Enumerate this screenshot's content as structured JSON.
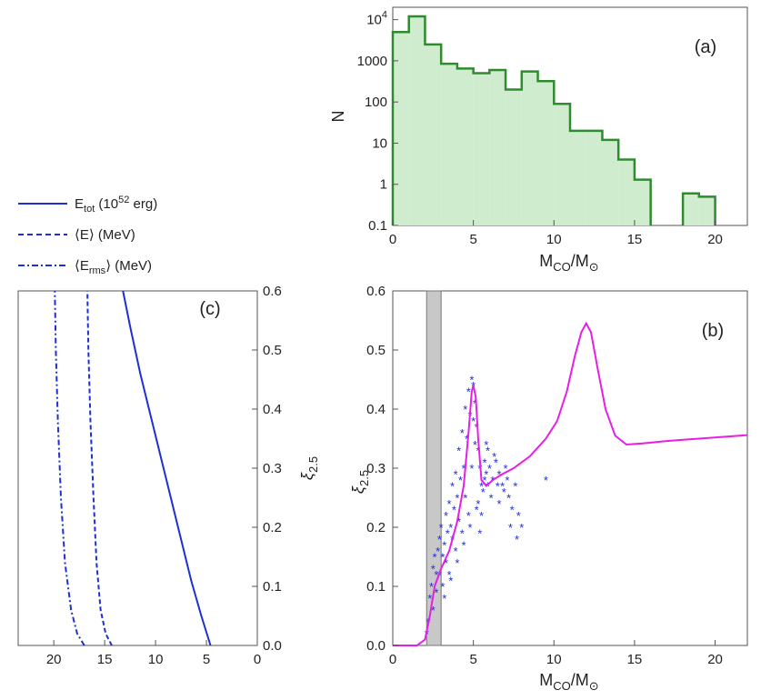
{
  "chart_data": [
    {
      "id": "a",
      "type": "bar",
      "panel_label": "(a)",
      "xlabel": "M_CO/M_⊙",
      "ylabel": "N",
      "yscale": "log",
      "xlim": [
        0,
        22
      ],
      "ylim": [
        0.1,
        20000
      ],
      "xticks": [
        0,
        5,
        10,
        15,
        20
      ],
      "xtick_labels": [
        "0",
        "5",
        "10",
        "15",
        "20"
      ],
      "yticks": [
        0.1,
        1,
        10,
        100,
        1000,
        10000
      ],
      "ytick_labels": [
        "0.1",
        "1",
        "10",
        "100",
        "1000",
        "10^4"
      ],
      "fill_color": "#cfeccf",
      "line_color": "#2e8b2e",
      "bins": [
        {
          "x0": 0,
          "x1": 1,
          "value": 5000
        },
        {
          "x0": 1,
          "x1": 2,
          "value": 12000
        },
        {
          "x0": 2,
          "x1": 3,
          "value": 2500
        },
        {
          "x0": 3,
          "x1": 4,
          "value": 850
        },
        {
          "x0": 4,
          "x1": 5,
          "value": 650
        },
        {
          "x0": 5,
          "x1": 6,
          "value": 500
        },
        {
          "x0": 6,
          "x1": 7,
          "value": 600
        },
        {
          "x0": 7,
          "x1": 8,
          "value": 200
        },
        {
          "x0": 8,
          "x1": 9,
          "value": 550
        },
        {
          "x0": 9,
          "x1": 10,
          "value": 320
        },
        {
          "x0": 10,
          "x1": 11,
          "value": 90
        },
        {
          "x0": 11,
          "x1": 12,
          "value": 20
        },
        {
          "x0": 12,
          "x1": 13,
          "value": 20
        },
        {
          "x0": 13,
          "x1": 14,
          "value": 12
        },
        {
          "x0": 14,
          "x1": 15,
          "value": 4
        },
        {
          "x0": 15,
          "x1": 16,
          "value": 1.3
        },
        {
          "x0": 18,
          "x1": 19,
          "value": 0.6
        },
        {
          "x0": 19,
          "x1": 20,
          "value": 0.5
        }
      ]
    },
    {
      "id": "b",
      "type": "line",
      "panel_label": "(b)",
      "xlabel": "M_CO/M_⊙",
      "ylabel": "ξ_2.5",
      "xlim": [
        0,
        22
      ],
      "ylim": [
        0,
        0.6
      ],
      "xticks": [
        0,
        5,
        10,
        15,
        20
      ],
      "xtick_labels": [
        "0",
        "5",
        "10",
        "15",
        "20"
      ],
      "yticks": [
        0,
        0.1,
        0.2,
        0.3,
        0.4,
        0.5,
        0.6
      ],
      "ytick_labels": [
        "0.0",
        "0.1",
        "0.2",
        "0.3",
        "0.4",
        "0.5",
        "0.6"
      ],
      "shaded_band": {
        "x0": 2.1,
        "x1": 3.0,
        "color": "#c8c8c8"
      },
      "series": [
        {
          "name": "fit",
          "kind": "line",
          "color": "#e61ee6",
          "x": [
            0,
            1.5,
            2.0,
            2.3,
            2.6,
            3.0,
            3.5,
            4.0,
            4.4,
            4.7,
            4.9,
            5.0,
            5.15,
            5.3,
            5.5,
            5.8,
            6.2,
            6.8,
            7.5,
            8.5,
            9.5,
            10.2,
            10.8,
            11.3,
            11.7,
            12.0,
            12.3,
            12.7,
            13.2,
            13.8,
            14.5,
            15.5,
            17,
            19,
            22
          ],
          "y": [
            0,
            0,
            0.01,
            0.05,
            0.1,
            0.13,
            0.16,
            0.21,
            0.27,
            0.36,
            0.43,
            0.44,
            0.42,
            0.35,
            0.28,
            0.27,
            0.28,
            0.29,
            0.3,
            0.32,
            0.35,
            0.38,
            0.43,
            0.49,
            0.53,
            0.545,
            0.53,
            0.47,
            0.4,
            0.355,
            0.34,
            0.342,
            0.346,
            0.35,
            0.356
          ]
        },
        {
          "name": "models",
          "kind": "scatter",
          "color": "#1f2fd6",
          "marker": "*",
          "x": [
            2.1,
            2.2,
            2.3,
            2.4,
            2.5,
            2.6,
            2.7,
            2.8,
            2.9,
            3.0,
            3.1,
            3.2,
            3.3,
            3.4,
            3.5,
            3.6,
            3.7,
            3.8,
            3.9,
            4.0,
            4.1,
            4.2,
            4.3,
            4.4,
            4.5,
            4.6,
            4.7,
            4.8,
            4.9,
            5.0,
            5.1,
            5.2,
            5.3,
            5.4,
            5.5,
            5.6,
            5.7,
            5.8,
            5.9,
            6.0,
            6.2,
            6.4,
            6.6,
            6.8,
            7.0,
            7.2,
            7.4,
            7.6,
            7.8,
            8.0,
            9.5,
            2.5,
            2.7,
            2.9,
            3.1,
            3.3,
            3.5,
            3.7,
            3.9,
            4.1,
            4.3,
            4.5,
            4.7,
            4.9,
            5.1,
            5.3,
            5.5,
            5.7,
            5.9,
            6.1,
            6.3,
            6.5,
            6.9,
            7.3,
            7.7,
            3.2,
            3.6,
            4.0,
            4.4,
            4.8,
            5.0,
            5.2,
            5.4,
            5.8,
            6.6,
            7.1
          ],
          "y": [
            0.02,
            0.04,
            0.08,
            0.1,
            0.13,
            0.15,
            0.12,
            0.16,
            0.18,
            0.2,
            0.15,
            0.17,
            0.22,
            0.19,
            0.24,
            0.2,
            0.27,
            0.23,
            0.29,
            0.25,
            0.33,
            0.28,
            0.36,
            0.3,
            0.4,
            0.35,
            0.43,
            0.39,
            0.45,
            0.44,
            0.41,
            0.37,
            0.33,
            0.3,
            0.27,
            0.26,
            0.28,
            0.29,
            0.27,
            0.3,
            0.28,
            0.31,
            0.29,
            0.27,
            0.3,
            0.25,
            0.23,
            0.27,
            0.22,
            0.2,
            0.28,
            0.06,
            0.09,
            0.12,
            0.1,
            0.14,
            0.12,
            0.18,
            0.16,
            0.21,
            0.19,
            0.25,
            0.22,
            0.3,
            0.34,
            0.24,
            0.22,
            0.31,
            0.33,
            0.25,
            0.32,
            0.27,
            0.26,
            0.2,
            0.18,
            0.08,
            0.11,
            0.14,
            0.17,
            0.2,
            0.38,
            0.23,
            0.19,
            0.34,
            0.24,
            0.28
          ]
        }
      ]
    },
    {
      "id": "c",
      "type": "line",
      "panel_label": "(c)",
      "ylabel": "ξ_2.5",
      "xlim": [
        23.5,
        0
      ],
      "ylim": [
        0,
        0.6
      ],
      "xticks": [
        20,
        15,
        10,
        5,
        0
      ],
      "xtick_labels": [
        "20",
        "15",
        "10",
        "5",
        "0"
      ],
      "yticks": [
        0,
        0.1,
        0.2,
        0.3,
        0.4,
        0.5,
        0.6
      ],
      "ytick_labels": [
        "0.0",
        "0.1",
        "0.2",
        "0.3",
        "0.4",
        "0.5",
        "0.6"
      ],
      "series": [
        {
          "name": "E_tot (10^52 erg)",
          "style": "solid",
          "color": "#1f2fd6",
          "x": [
            4.6,
            5.5,
            6.5,
            7.5,
            8.5,
            9.5,
            10.5,
            11.5,
            12.5,
            13.2
          ],
          "y": [
            0.0,
            0.05,
            0.11,
            0.18,
            0.25,
            0.32,
            0.39,
            0.46,
            0.54,
            0.6
          ]
        },
        {
          "name": "⟨E⟩ (MeV)",
          "style": "dashed",
          "color": "#1f2fd6",
          "x": [
            14.3,
            14.9,
            15.4,
            15.8,
            16.1,
            16.4,
            16.6,
            16.7
          ],
          "y": [
            0.0,
            0.02,
            0.06,
            0.14,
            0.25,
            0.38,
            0.5,
            0.6
          ]
        },
        {
          "name": "⟨E_rms⟩ (MeV)",
          "style": "dashdot",
          "color": "#1f2fd6",
          "x": [
            17.0,
            17.7,
            18.3,
            18.9,
            19.3,
            19.6,
            19.8,
            19.9
          ],
          "y": [
            0.0,
            0.02,
            0.06,
            0.14,
            0.25,
            0.38,
            0.5,
            0.6
          ]
        }
      ]
    }
  ],
  "legend": {
    "items": [
      {
        "style": "solid",
        "label_main": "E",
        "label_sub": "tot",
        "label_rest": " (10",
        "label_sup": "52",
        "label_end": " erg)"
      },
      {
        "style": "dashed",
        "label_main": "⟨E⟩ (MeV)",
        "label_sub": "",
        "label_rest": "",
        "label_sup": "",
        "label_end": ""
      },
      {
        "style": "dashdot",
        "label_main": "⟨E",
        "label_sub": "rms",
        "label_rest": "⟩ (MeV)",
        "label_sup": "",
        "label_end": ""
      }
    ]
  },
  "axis_text": {
    "mco_main": "M",
    "mco_sub": "CO",
    "mco_slash": "/M",
    "mco_sun": "⊙",
    "xi_main": "ξ",
    "xi_sub": "2.5",
    "n_label": "N"
  }
}
